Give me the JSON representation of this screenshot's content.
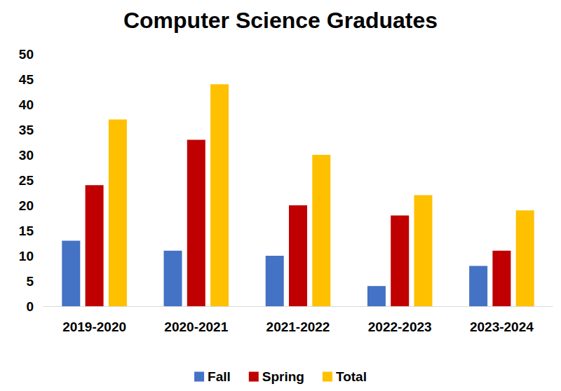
{
  "chart_data": {
    "type": "bar",
    "title": "Computer Science Graduates",
    "categories": [
      "2019-2020",
      "2020-2021",
      "2021-2022",
      "2022-2023",
      "2023-2024"
    ],
    "series": [
      {
        "name": "Fall",
        "color": "#4472c4",
        "values": [
          13,
          11,
          10,
          4,
          8
        ]
      },
      {
        "name": "Spring",
        "color": "#c00000",
        "values": [
          24,
          33,
          20,
          18,
          11
        ]
      },
      {
        "name": "Total",
        "color": "#ffc000",
        "values": [
          37,
          44,
          30,
          22,
          19
        ]
      }
    ],
    "ylim": [
      0,
      50
    ],
    "yticks": [
      0,
      5,
      10,
      15,
      20,
      25,
      30,
      35,
      40,
      45,
      50
    ],
    "grid": false,
    "legend": "bottom"
  }
}
